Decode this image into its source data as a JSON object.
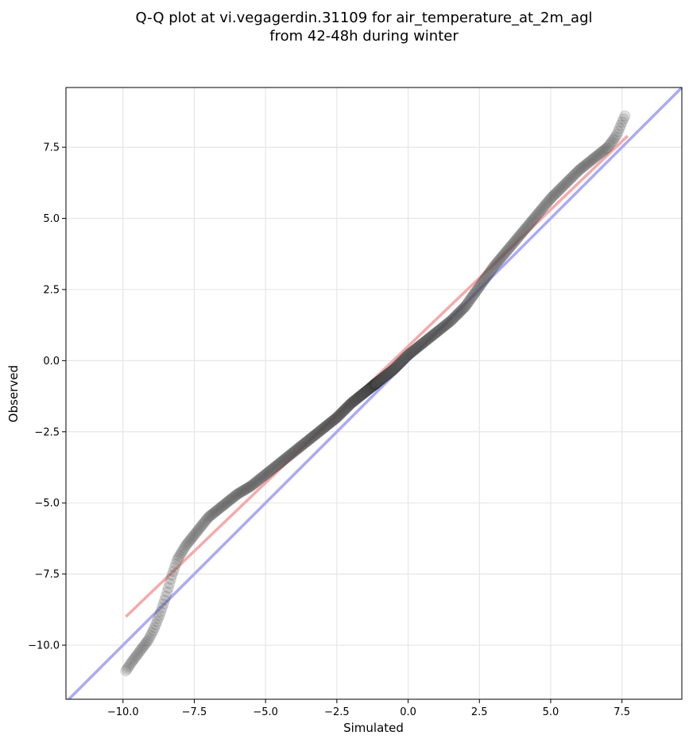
{
  "chart_data": {
    "type": "scatter",
    "title": "Q-Q plot at vi.vegagerdin.31109 for air_temperature_at_2m_agl",
    "subtitle": "from 42-48h during winter",
    "xlabel": "Simulated",
    "ylabel": "Observed",
    "xlim": [
      -12.0,
      9.6
    ],
    "ylim": [
      -11.9,
      9.6
    ],
    "x_ticks": [
      -10.0,
      -7.5,
      -5.0,
      -2.5,
      0.0,
      2.5,
      5.0,
      7.5
    ],
    "y_ticks": [
      -10.0,
      -7.5,
      -5.0,
      -2.5,
      0.0,
      2.5,
      5.0,
      7.5
    ],
    "x_tick_labels": [
      "−10.0",
      "−7.5",
      "−5.0",
      "−2.5",
      "0.0",
      "2.5",
      "5.0",
      "7.5"
    ],
    "y_tick_labels": [
      "−10.0",
      "−7.5",
      "−5.0",
      "−2.5",
      "0.0",
      "2.5",
      "5.0",
      "7.5"
    ],
    "grid": true,
    "quantile_curve": {
      "x": [
        -9.9,
        -9.7,
        -9.4,
        -9.1,
        -8.9,
        -8.7,
        -8.5,
        -8.3,
        -8.1,
        -7.8,
        -7.4,
        -7.0,
        -6.5,
        -6.0,
        -5.5,
        -5.0,
        -4.5,
        -4.0,
        -3.5,
        -3.0,
        -2.5,
        -2.0,
        -1.5,
        -1.0,
        -0.5,
        0.0,
        0.5,
        1.0,
        1.5,
        2.0,
        2.5,
        3.0,
        3.5,
        4.0,
        4.5,
        5.0,
        5.5,
        6.0,
        6.5,
        7.0,
        7.3,
        7.6
      ],
      "y": [
        -10.9,
        -10.6,
        -10.2,
        -9.8,
        -9.4,
        -8.9,
        -8.3,
        -7.6,
        -7.0,
        -6.5,
        -6.0,
        -5.5,
        -5.1,
        -4.7,
        -4.4,
        -4.0,
        -3.6,
        -3.2,
        -2.8,
        -2.4,
        -2.0,
        -1.5,
        -1.1,
        -0.7,
        -0.3,
        0.2,
        0.6,
        1.0,
        1.4,
        1.9,
        2.6,
        3.3,
        3.9,
        4.5,
        5.1,
        5.7,
        6.2,
        6.7,
        7.1,
        7.5,
        7.9,
        8.6
      ]
    },
    "reference_lines": {
      "identity": {
        "x": [
          -12.0,
          9.6
        ],
        "y": [
          -12.0,
          9.6
        ],
        "color": "#aaaaf5"
      },
      "fit": {
        "x": [
          -9.9,
          7.7
        ],
        "y": [
          -9.0,
          7.9
        ],
        "color": "#f5aaaa"
      }
    }
  }
}
